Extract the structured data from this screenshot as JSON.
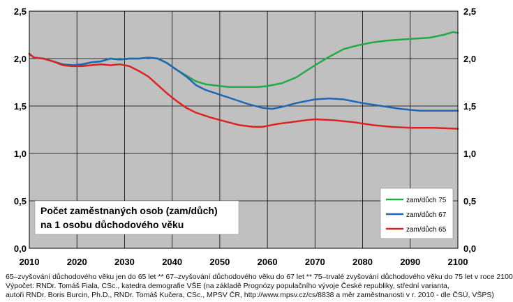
{
  "chart_data": {
    "type": "line",
    "title": [
      "Počet zaměstnaných osob (zam/důch)",
      "na 1 osobu důchodového věku"
    ],
    "x_range": [
      2010,
      2100
    ],
    "x_ticks": [
      2010,
      2020,
      2030,
      2040,
      2050,
      2060,
      2070,
      2080,
      2090,
      2100
    ],
    "x_tick_labels": [
      "2010",
      "2020",
      "2030",
      "2040",
      "2050",
      "2060",
      "2070",
      "2080",
      "2090",
      "2100"
    ],
    "y_range": [
      0,
      2.5
    ],
    "y_ticks": [
      0,
      0.5,
      1.0,
      1.5,
      2.0,
      2.5
    ],
    "y_tick_labels": [
      "0,0",
      "0,5",
      "1,0",
      "1,5",
      "2,0",
      "2,5"
    ],
    "grid": true,
    "legend_position": "bottom-right",
    "series": [
      {
        "name": "zam/důch 75",
        "color": "#22aa44",
        "points": [
          [
            2010,
            2.05
          ],
          [
            2011,
            2.01
          ],
          [
            2013,
            2.0
          ],
          [
            2015,
            1.97
          ],
          [
            2017,
            1.94
          ],
          [
            2019,
            1.93
          ],
          [
            2021,
            1.93
          ],
          [
            2023,
            1.96
          ],
          [
            2025,
            1.97
          ],
          [
            2027,
            2.0
          ],
          [
            2029,
            1.99
          ],
          [
            2031,
            2.0
          ],
          [
            2033,
            2.0
          ],
          [
            2035,
            2.01
          ],
          [
            2037,
            2.0
          ],
          [
            2039,
            1.95
          ],
          [
            2041,
            1.88
          ],
          [
            2043,
            1.82
          ],
          [
            2045,
            1.76
          ],
          [
            2047,
            1.73
          ],
          [
            2050,
            1.71
          ],
          [
            2052,
            1.7
          ],
          [
            2055,
            1.7
          ],
          [
            2058,
            1.7
          ],
          [
            2060,
            1.71
          ],
          [
            2063,
            1.74
          ],
          [
            2066,
            1.8
          ],
          [
            2070,
            1.93
          ],
          [
            2073,
            2.02
          ],
          [
            2076,
            2.1
          ],
          [
            2079,
            2.14
          ],
          [
            2082,
            2.17
          ],
          [
            2085,
            2.19
          ],
          [
            2088,
            2.2
          ],
          [
            2091,
            2.21
          ],
          [
            2094,
            2.22
          ],
          [
            2097,
            2.25
          ],
          [
            2099,
            2.28
          ],
          [
            2100,
            2.27
          ]
        ]
      },
      {
        "name": "zam/důch 67",
        "color": "#1f66b5",
        "points": [
          [
            2010,
            2.05
          ],
          [
            2011,
            2.01
          ],
          [
            2013,
            2.0
          ],
          [
            2015,
            1.97
          ],
          [
            2017,
            1.94
          ],
          [
            2019,
            1.93
          ],
          [
            2021,
            1.94
          ],
          [
            2023,
            1.96
          ],
          [
            2025,
            1.97
          ],
          [
            2027,
            2.0
          ],
          [
            2029,
            1.99
          ],
          [
            2031,
            2.0
          ],
          [
            2033,
            2.0
          ],
          [
            2035,
            2.01
          ],
          [
            2037,
            2.0
          ],
          [
            2039,
            1.95
          ],
          [
            2041,
            1.88
          ],
          [
            2043,
            1.81
          ],
          [
            2045,
            1.72
          ],
          [
            2047,
            1.67
          ],
          [
            2050,
            1.62
          ],
          [
            2053,
            1.57
          ],
          [
            2056,
            1.52
          ],
          [
            2059,
            1.48
          ],
          [
            2061,
            1.47
          ],
          [
            2063,
            1.49
          ],
          [
            2066,
            1.53
          ],
          [
            2070,
            1.57
          ],
          [
            2073,
            1.58
          ],
          [
            2076,
            1.57
          ],
          [
            2080,
            1.53
          ],
          [
            2084,
            1.5
          ],
          [
            2088,
            1.47
          ],
          [
            2092,
            1.45
          ],
          [
            2096,
            1.45
          ],
          [
            2100,
            1.45
          ]
        ]
      },
      {
        "name": "zam/důch 65",
        "color": "#dd2222",
        "points": [
          [
            2010,
            2.05
          ],
          [
            2011,
            2.01
          ],
          [
            2013,
            2.0
          ],
          [
            2015,
            1.97
          ],
          [
            2017,
            1.93
          ],
          [
            2019,
            1.92
          ],
          [
            2021,
            1.92
          ],
          [
            2023,
            1.93
          ],
          [
            2025,
            1.94
          ],
          [
            2027,
            1.93
          ],
          [
            2029,
            1.94
          ],
          [
            2031,
            1.92
          ],
          [
            2033,
            1.87
          ],
          [
            2035,
            1.81
          ],
          [
            2037,
            1.72
          ],
          [
            2039,
            1.63
          ],
          [
            2041,
            1.55
          ],
          [
            2043,
            1.48
          ],
          [
            2045,
            1.43
          ],
          [
            2048,
            1.38
          ],
          [
            2051,
            1.34
          ],
          [
            2054,
            1.3
          ],
          [
            2057,
            1.28
          ],
          [
            2059,
            1.28
          ],
          [
            2062,
            1.31
          ],
          [
            2065,
            1.33
          ],
          [
            2068,
            1.35
          ],
          [
            2070,
            1.36
          ],
          [
            2074,
            1.35
          ],
          [
            2078,
            1.33
          ],
          [
            2082,
            1.3
          ],
          [
            2086,
            1.28
          ],
          [
            2090,
            1.27
          ],
          [
            2095,
            1.27
          ],
          [
            2100,
            1.26
          ]
        ]
      }
    ]
  },
  "footnotes": [
    "65–zvyšování důchodového věku jen do 65 let ** 67–zvyšování důchodového věku do 67 let ** 75–trvalé zvyšování důchodového věku do 75 let v roce 2100",
    "Výpočet: RNDr. Tomáš Fiala, CSc., katedra demografie VŠE (na základě Prognózy populačního vývoje České republiky, střední varianta,",
    "autoři RNDr. Boris Burcin, Ph.D., RNDr. Tomáš Kučera, CSc., MPSV ČR, http://www.mpsv.cz/cs/8838 a měr zaměstnanosti v r. 2010 - dle ČSÚ, VŠPS)"
  ],
  "colors": {
    "plot_background": "#c0c0c0",
    "grid": "#000000",
    "title_box": "#ffffff",
    "legend_box": "#ffffff"
  }
}
